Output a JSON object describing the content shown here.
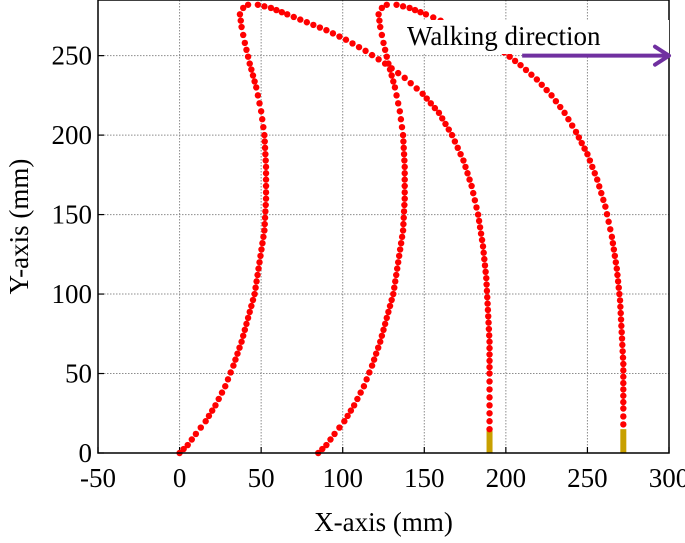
{
  "chart_data": {
    "type": "scatter",
    "title": "",
    "xlabel": "X-axis (mm)",
    "ylabel": "Y-axis (mm)",
    "xlim": [
      -50,
      300
    ],
    "ylim": [
      0,
      285
    ],
    "xticks": [
      -50,
      0,
      50,
      100,
      150,
      200,
      250,
      300
    ],
    "yticks": [
      0,
      50,
      100,
      150,
      200,
      250
    ],
    "grid": true,
    "legend": "none",
    "point_color": "#ff0000",
    "stance_color": "#c8a000",
    "arrow_color": "#7030a0",
    "annotation": {
      "text": "Walking direction",
      "arrow_from": [
        210,
        250
      ],
      "arrow_to": [
        300,
        250
      ]
    },
    "series": [
      {
        "trajectory": [
          [
            0,
            0
          ],
          [
            5,
            5
          ],
          [
            10,
            12
          ],
          [
            16,
            20
          ],
          [
            22,
            30
          ],
          [
            28,
            42
          ],
          [
            33,
            55
          ],
          [
            38,
            70
          ],
          [
            42,
            85
          ],
          [
            46,
            100
          ],
          [
            49,
            120
          ],
          [
            52,
            140
          ],
          [
            53,
            160
          ],
          [
            53,
            180
          ],
          [
            52,
            200
          ],
          [
            50,
            215
          ],
          [
            47,
            230
          ],
          [
            43,
            245
          ],
          [
            40,
            258
          ],
          [
            38,
            268
          ],
          [
            37,
            276
          ],
          [
            39,
            280
          ],
          [
            42,
            282
          ],
          [
            48,
            282
          ],
          [
            56,
            280
          ],
          [
            66,
            276
          ],
          [
            78,
            271
          ],
          [
            90,
            266
          ],
          [
            102,
            260
          ],
          [
            114,
            253
          ],
          [
            126,
            245
          ],
          [
            138,
            236
          ],
          [
            149,
            226
          ],
          [
            159,
            214
          ],
          [
            167,
            200
          ],
          [
            174,
            184
          ],
          [
            179,
            168
          ],
          [
            183,
            150
          ],
          [
            186,
            130
          ],
          [
            188,
            110
          ],
          [
            189,
            90
          ],
          [
            190,
            70
          ],
          [
            190,
            50
          ],
          [
            190,
            35
          ],
          [
            190,
            25
          ],
          [
            190,
            15
          ]
        ],
        "stance": [
          [
            190,
            0
          ],
          [
            190,
            14
          ]
        ]
      },
      {
        "trajectory": [
          [
            85,
            0
          ],
          [
            90,
            5
          ],
          [
            95,
            12
          ],
          [
            101,
            20
          ],
          [
            107,
            30
          ],
          [
            113,
            42
          ],
          [
            118,
            55
          ],
          [
            123,
            70
          ],
          [
            127,
            85
          ],
          [
            131,
            100
          ],
          [
            134,
            120
          ],
          [
            137,
            140
          ],
          [
            138,
            160
          ],
          [
            138,
            180
          ],
          [
            137,
            200
          ],
          [
            135,
            215
          ],
          [
            132,
            230
          ],
          [
            128,
            245
          ],
          [
            125,
            258
          ],
          [
            123,
            268
          ],
          [
            122,
            276
          ],
          [
            124,
            280
          ],
          [
            127,
            282
          ],
          [
            133,
            282
          ],
          [
            141,
            280
          ],
          [
            151,
            276
          ],
          [
            160,
            272
          ]
        ],
        "stance": []
      },
      {
        "trajectory": [
          [
            190,
            260
          ],
          [
            199,
            252
          ],
          [
            209,
            244
          ],
          [
            219,
            235
          ],
          [
            228,
            225
          ],
          [
            236,
            214
          ],
          [
            243,
            202
          ],
          [
            250,
            188
          ],
          [
            256,
            172
          ],
          [
            261,
            155
          ],
          [
            265,
            136
          ],
          [
            268,
            116
          ],
          [
            270,
            96
          ],
          [
            271,
            76
          ],
          [
            272,
            56
          ],
          [
            272,
            40
          ],
          [
            272,
            28
          ],
          [
            272,
            18
          ]
        ],
        "stance": [
          [
            272,
            0
          ],
          [
            272,
            15
          ]
        ]
      }
    ]
  }
}
